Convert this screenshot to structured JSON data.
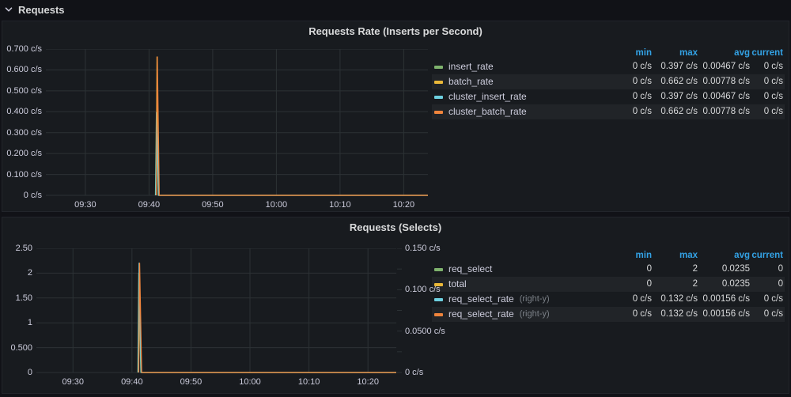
{
  "theme": {
    "page_bg": "#111217",
    "panel_bg": "#181b1f",
    "panel_border": "#22252b",
    "grid": "#2c3235",
    "text": "#ccccdc",
    "value_text": "#d8d9da",
    "header_blue": "#33a2e5",
    "suffix_dim": "#7b8087"
  },
  "row_header": {
    "label": "Requests",
    "icon": "chevron-down"
  },
  "panels": [
    {
      "title": "Requests Rate (Inserts per Second)",
      "legend": {
        "headers": [
          "min",
          "max",
          "avg",
          "current"
        ],
        "rows": [
          {
            "name": "insert_rate",
            "suffix": "",
            "color": "#7EB26D",
            "min": "0 c/s",
            "max": "0.397 c/s",
            "avg": "0.00467 c/s",
            "current": "0 c/s"
          },
          {
            "name": "batch_rate",
            "suffix": "",
            "color": "#EAB839",
            "min": "0 c/s",
            "max": "0.662 c/s",
            "avg": "0.00778 c/s",
            "current": "0 c/s"
          },
          {
            "name": "cluster_insert_rate",
            "suffix": "",
            "color": "#6ED0E0",
            "min": "0 c/s",
            "max": "0.397 c/s",
            "avg": "0.00467 c/s",
            "current": "0 c/s"
          },
          {
            "name": "cluster_batch_rate",
            "suffix": "",
            "color": "#EF843C",
            "min": "0 c/s",
            "max": "0.662 c/s",
            "avg": "0.00778 c/s",
            "current": "0 c/s"
          }
        ]
      },
      "chart_data": {
        "type": "line",
        "title": "Requests Rate (Inserts per Second)",
        "x_unit": "time (HH:MM)",
        "x_domain": [
          23.8,
          83.8
        ],
        "x_ticks": [
          {
            "label": "09:30",
            "v": 30
          },
          {
            "label": "09:40",
            "v": 40
          },
          {
            "label": "09:50",
            "v": 50
          },
          {
            "label": "10:00",
            "v": 60
          },
          {
            "label": "10:10",
            "v": 70
          },
          {
            "label": "10:20",
            "v": 80
          }
        ],
        "y_left": {
          "min": 0,
          "max": 0.7,
          "ticks": [
            {
              "label": "0.700 c/s",
              "v": 0.7
            },
            {
              "label": "0.600 c/s",
              "v": 0.6
            },
            {
              "label": "0.500 c/s",
              "v": 0.5
            },
            {
              "label": "0.400 c/s",
              "v": 0.4
            },
            {
              "label": "0.300 c/s",
              "v": 0.3
            },
            {
              "label": "0.200 c/s",
              "v": 0.2
            },
            {
              "label": "0.100 c/s",
              "v": 0.1
            },
            {
              "label": "0 c/s",
              "v": 0
            }
          ]
        },
        "series": [
          {
            "name": "insert_rate",
            "color": "#7EB26D",
            "axis": "left",
            "peak_time": "09:41",
            "points": [
              [
                41.0,
                0
              ],
              [
                41.15,
                0.397
              ],
              [
                41.45,
                0
              ],
              [
                83.8,
                0
              ]
            ]
          },
          {
            "name": "batch_rate",
            "color": "#EAB839",
            "axis": "left",
            "peak_time": "09:41",
            "points": [
              [
                41.1,
                0
              ],
              [
                41.25,
                0.662
              ],
              [
                41.55,
                0
              ],
              [
                83.8,
                0
              ]
            ]
          },
          {
            "name": "cluster_insert_rate",
            "color": "#6ED0E0",
            "axis": "left",
            "peak_time": "09:41",
            "points": [
              [
                41.05,
                0
              ],
              [
                41.2,
                0.397
              ],
              [
                41.5,
                0
              ],
              [
                83.8,
                0
              ]
            ]
          },
          {
            "name": "cluster_batch_rate",
            "color": "#EF843C",
            "axis": "left",
            "peak_time": "09:41",
            "points": [
              [
                41.15,
                0
              ],
              [
                41.3,
                0.662
              ],
              [
                41.6,
                0
              ],
              [
                83.8,
                0
              ]
            ]
          }
        ]
      }
    },
    {
      "title": "Requests (Selects)",
      "legend": {
        "headers": [
          "min",
          "max",
          "avg",
          "current"
        ],
        "rows": [
          {
            "name": "req_select",
            "suffix": "",
            "color": "#7EB26D",
            "min": "0",
            "max": "2",
            "avg": "0.0235",
            "current": "0"
          },
          {
            "name": "total",
            "suffix": "",
            "color": "#EAB839",
            "min": "0",
            "max": "2",
            "avg": "0.0235",
            "current": "0"
          },
          {
            "name": "req_select_rate",
            "suffix": "(right-y)",
            "color": "#6ED0E0",
            "min": "0 c/s",
            "max": "0.132 c/s",
            "avg": "0.00156 c/s",
            "current": "0 c/s"
          },
          {
            "name": "req_select_rate",
            "suffix": "(right-y)",
            "color": "#EF843C",
            "min": "0 c/s",
            "max": "0.132 c/s",
            "avg": "0.00156 c/s",
            "current": "0 c/s"
          }
        ]
      },
      "chart_data": {
        "type": "line",
        "title": "Requests (Selects)",
        "x_unit": "time (HH:MM)",
        "x_domain": [
          23.8,
          84.8
        ],
        "x_ticks": [
          {
            "label": "09:30",
            "v": 30
          },
          {
            "label": "09:40",
            "v": 40
          },
          {
            "label": "09:50",
            "v": 50
          },
          {
            "label": "10:00",
            "v": 60
          },
          {
            "label": "10:10",
            "v": 70
          },
          {
            "label": "10:20",
            "v": 80
          }
        ],
        "y_left": {
          "min": 0,
          "max": 2.5,
          "ticks": [
            {
              "label": "2.50",
              "v": 2.5
            },
            {
              "label": "2",
              "v": 2
            },
            {
              "label": "1.50",
              "v": 1.5
            },
            {
              "label": "1",
              "v": 1
            },
            {
              "label": "0.500",
              "v": 0.5
            },
            {
              "label": "0",
              "v": 0
            }
          ]
        },
        "y_right": {
          "min": 0,
          "max": 0.15,
          "ticks": [
            {
              "label": "0.150 c/s",
              "v": 0.15
            },
            {
              "label": "",
              "v": 0.125
            },
            {
              "label": "0.100 c/s",
              "v": 0.1
            },
            {
              "label": "",
              "v": 0.075
            },
            {
              "label": "0.0500 c/s",
              "v": 0.05
            },
            {
              "label": "",
              "v": 0.025
            },
            {
              "label": "0 c/s",
              "v": 0
            }
          ]
        },
        "series": [
          {
            "name": "req_select",
            "color": "#7EB26D",
            "axis": "left",
            "peak_time": "09:41",
            "points": [
              [
                41.0,
                0
              ],
              [
                41.15,
                2
              ],
              [
                41.5,
                0
              ],
              [
                84.8,
                0
              ]
            ]
          },
          {
            "name": "total",
            "color": "#EAB839",
            "axis": "left",
            "peak_time": "09:41",
            "points": [
              [
                41.1,
                0
              ],
              [
                41.25,
                2
              ],
              [
                41.6,
                0
              ],
              [
                84.8,
                0
              ]
            ]
          },
          {
            "name": "req_select_rate",
            "color": "#6ED0E0",
            "axis": "right",
            "peak_time": "09:41",
            "points": [
              [
                41.05,
                0
              ],
              [
                41.2,
                0.132
              ],
              [
                41.55,
                0
              ],
              [
                84.8,
                0
              ]
            ]
          },
          {
            "name": "req_select_rate",
            "color": "#EF843C",
            "axis": "right",
            "peak_time": "09:41",
            "points": [
              [
                41.15,
                0
              ],
              [
                41.3,
                0.132
              ],
              [
                41.65,
                0
              ],
              [
                84.8,
                0
              ]
            ]
          }
        ]
      }
    }
  ]
}
